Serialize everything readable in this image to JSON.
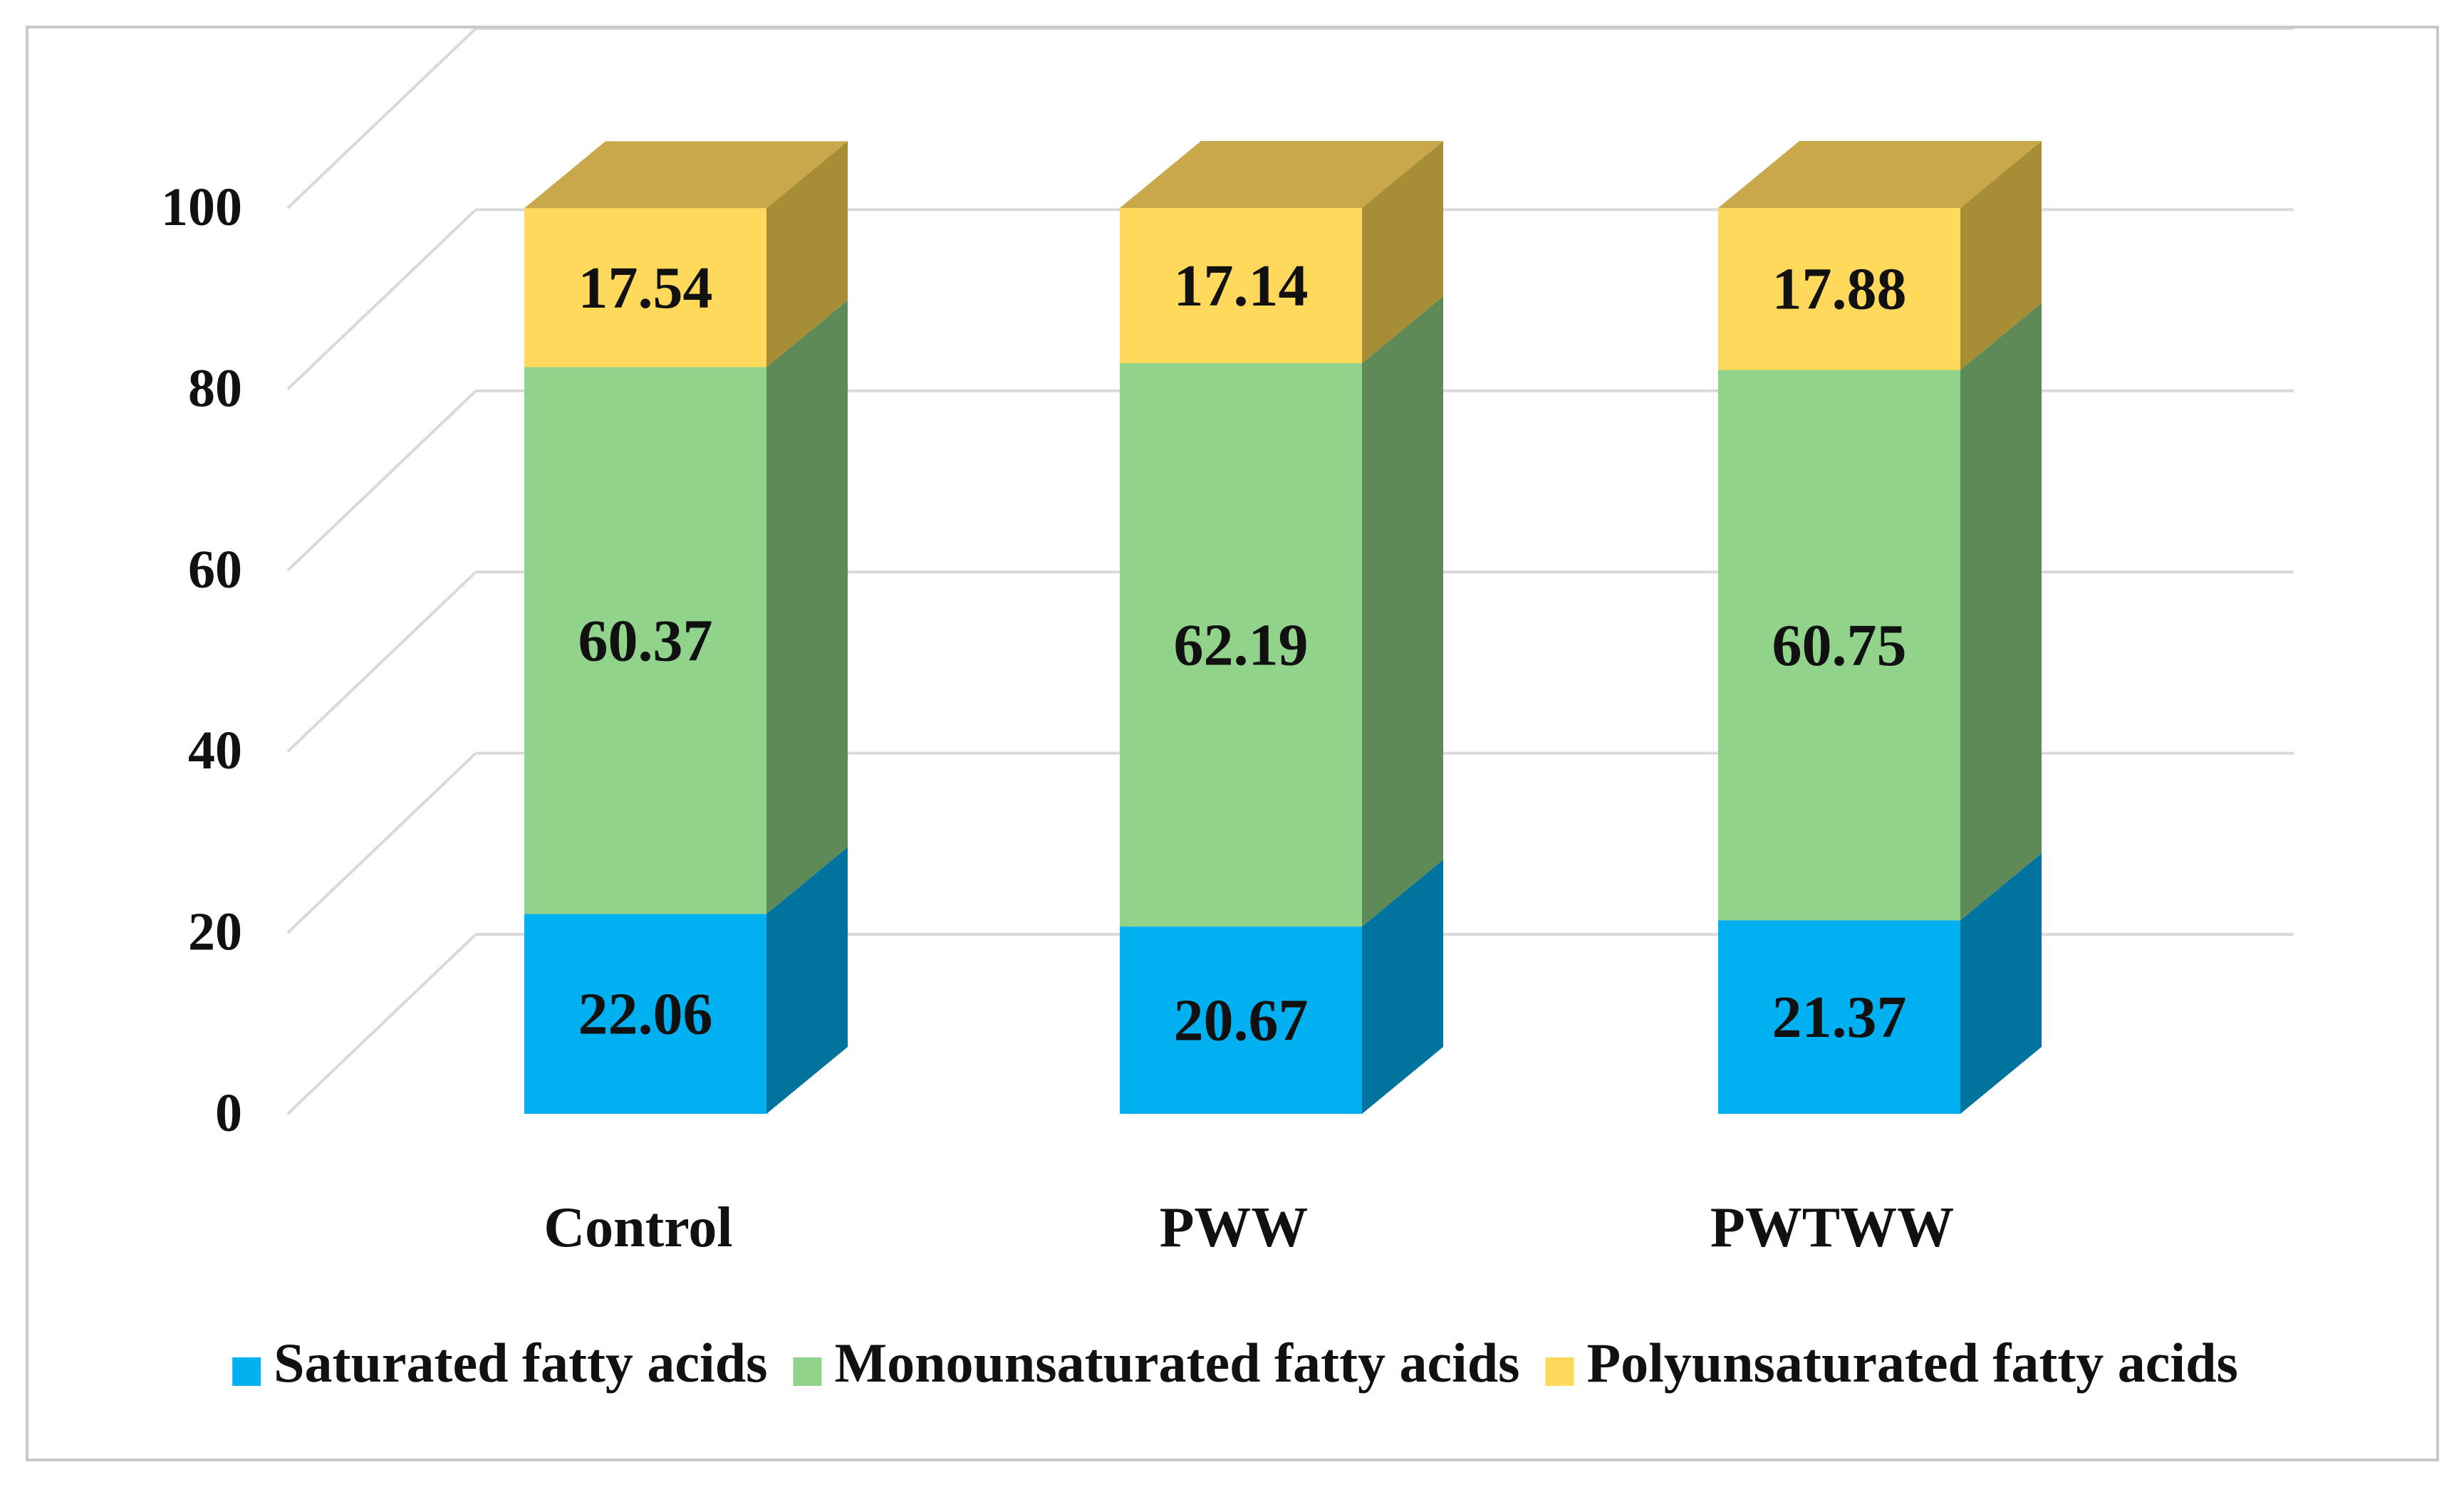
{
  "chart_data": {
    "type": "bar",
    "stacked": true,
    "style": "3d",
    "title": "",
    "xlabel": "",
    "ylabel": "",
    "ylim": [
      0,
      100
    ],
    "yticks": [
      0,
      20,
      40,
      60,
      80,
      100
    ],
    "grid": true,
    "legend_position": "bottom",
    "categories": [
      "Control",
      "PWW",
      "PWTWW"
    ],
    "series": [
      {
        "name": "Saturated fatty acids",
        "values": [
          22.06,
          20.67,
          21.37
        ],
        "labels": [
          "22.06",
          "20.67",
          "21.37"
        ],
        "color": "#00b0f0",
        "side_color": "#00749e",
        "top_color": "#0090c4"
      },
      {
        "name": "Monounsaturated fatty acids",
        "values": [
          60.37,
          62.19,
          60.75
        ],
        "labels": [
          "60.37",
          "62.19",
          "60.75"
        ],
        "color": "#92d38b",
        "side_color": "#5e8a58",
        "top_color": "#7ab873"
      },
      {
        "name": "Polyunsaturated fatty acids",
        "values": [
          17.54,
          17.14,
          17.88
        ],
        "labels": [
          "17.54",
          "17.14",
          "17.88"
        ],
        "color": "#ffd95c",
        "side_color": "#a88d37",
        "top_color": "#c9a84b"
      }
    ]
  }
}
